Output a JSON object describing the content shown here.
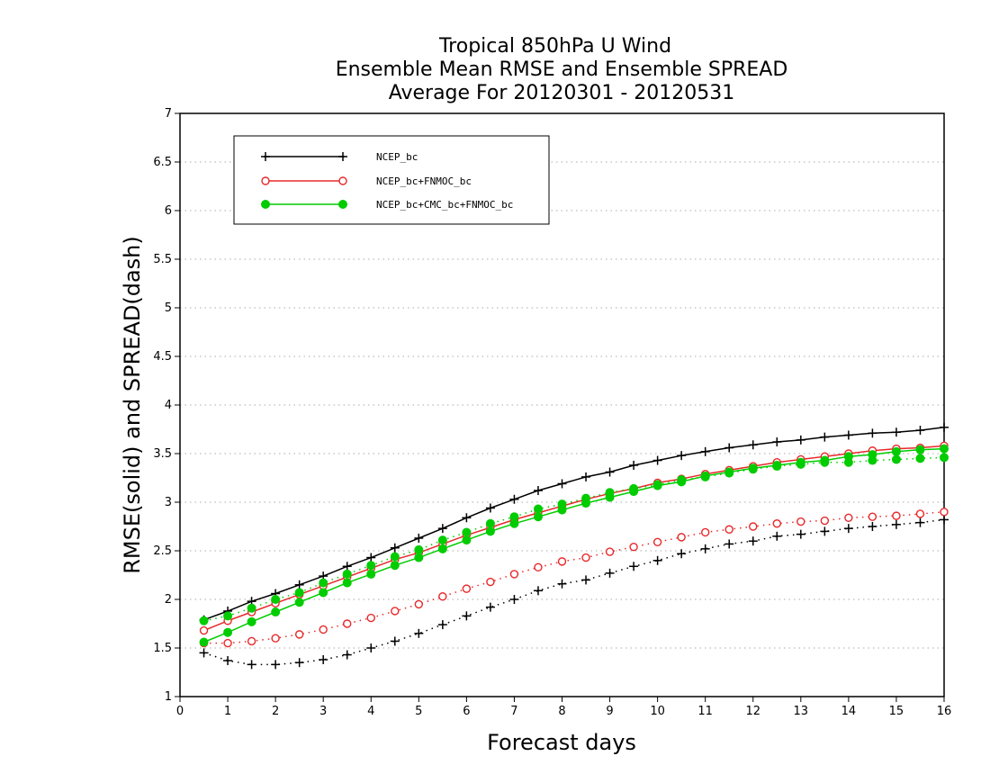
{
  "chart_data": {
    "type": "line",
    "title": [
      "Tropical 850hPa U Wind",
      "Ensemble Mean RMSE and Ensemble SPREAD",
      "Average For 20120301 - 20120531"
    ],
    "xlabel": "Forecast days",
    "ylabel": "RMSE(solid) and SPREAD(dash)",
    "xlim": [
      0,
      16
    ],
    "ylim": [
      1,
      7
    ],
    "xticks": [
      "0",
      "1",
      "2",
      "3",
      "4",
      "5",
      "6",
      "7",
      "8",
      "9",
      "10",
      "11",
      "12",
      "13",
      "14",
      "15",
      "16"
    ],
    "yticks": [
      "1",
      "1.5",
      "2",
      "2.5",
      "3",
      "3.5",
      "4",
      "4.5",
      "5",
      "5.5",
      "6",
      "6.5",
      "7"
    ],
    "ytick_values": [
      1,
      1.5,
      2,
      2.5,
      3,
      3.5,
      4,
      4.5,
      5,
      5.5,
      6,
      6.5,
      7
    ],
    "grid": "horizontal dotted",
    "legend_position": "top-left",
    "x": [
      0.5,
      1,
      1.5,
      2,
      2.5,
      3,
      3.5,
      4,
      4.5,
      5,
      5.5,
      6,
      6.5,
      7,
      7.5,
      8,
      8.5,
      9,
      9.5,
      10,
      10.5,
      11,
      11.5,
      12,
      12.5,
      13,
      13.5,
      14,
      14.5,
      15,
      15.5,
      16
    ],
    "series": [
      {
        "name": "NCEP_bc",
        "color": "#000000",
        "marker": "plus",
        "rmse": [
          1.79,
          1.88,
          1.98,
          2.06,
          2.15,
          2.24,
          2.34,
          2.43,
          2.53,
          2.63,
          2.73,
          2.84,
          2.94,
          3.03,
          3.12,
          3.19,
          3.26,
          3.31,
          3.38,
          3.43,
          3.48,
          3.52,
          3.56,
          3.59,
          3.62,
          3.64,
          3.67,
          3.69,
          3.71,
          3.72,
          3.74,
          3.77
        ],
        "spread": [
          1.45,
          1.37,
          1.33,
          1.33,
          1.35,
          1.38,
          1.43,
          1.5,
          1.57,
          1.65,
          1.74,
          1.83,
          1.92,
          2.0,
          2.09,
          2.16,
          2.2,
          2.27,
          2.34,
          2.4,
          2.47,
          2.52,
          2.57,
          2.6,
          2.65,
          2.67,
          2.7,
          2.73,
          2.75,
          2.77,
          2.79,
          2.82
        ]
      },
      {
        "name": "NCEP_bc+FNMOC_bc",
        "color": "#e8282a",
        "marker": "open-circle",
        "rmse": [
          1.68,
          1.78,
          1.87,
          1.96,
          2.05,
          2.14,
          2.23,
          2.32,
          2.41,
          2.48,
          2.57,
          2.66,
          2.74,
          2.82,
          2.89,
          2.96,
          3.03,
          3.09,
          3.14,
          3.2,
          3.24,
          3.29,
          3.33,
          3.37,
          3.41,
          3.44,
          3.47,
          3.5,
          3.53,
          3.55,
          3.56,
          3.58
        ],
        "spread": [
          1.55,
          1.55,
          1.57,
          1.6,
          1.64,
          1.69,
          1.75,
          1.81,
          1.88,
          1.95,
          2.03,
          2.11,
          2.18,
          2.26,
          2.33,
          2.39,
          2.43,
          2.49,
          2.54,
          2.59,
          2.64,
          2.69,
          2.72,
          2.75,
          2.78,
          2.8,
          2.81,
          2.84,
          2.85,
          2.86,
          2.88,
          2.9
        ]
      },
      {
        "name": "NCEP_bc+CMC_bc+FNMOC_bc",
        "color": "#00cc00",
        "marker": "filled-circle",
        "rmse": [
          1.56,
          1.66,
          1.77,
          1.87,
          1.97,
          2.07,
          2.17,
          2.26,
          2.35,
          2.43,
          2.52,
          2.61,
          2.7,
          2.78,
          2.85,
          2.92,
          2.99,
          3.05,
          3.11,
          3.17,
          3.21,
          3.27,
          3.31,
          3.35,
          3.38,
          3.41,
          3.43,
          3.47,
          3.49,
          3.52,
          3.54,
          3.55
        ],
        "spread": [
          1.78,
          1.83,
          1.91,
          2.0,
          2.07,
          2.17,
          2.26,
          2.35,
          2.44,
          2.51,
          2.61,
          2.69,
          2.78,
          2.85,
          2.93,
          2.98,
          3.04,
          3.1,
          3.14,
          3.18,
          3.23,
          3.26,
          3.3,
          3.34,
          3.37,
          3.39,
          3.41,
          3.41,
          3.43,
          3.44,
          3.45,
          3.46
        ]
      }
    ]
  }
}
